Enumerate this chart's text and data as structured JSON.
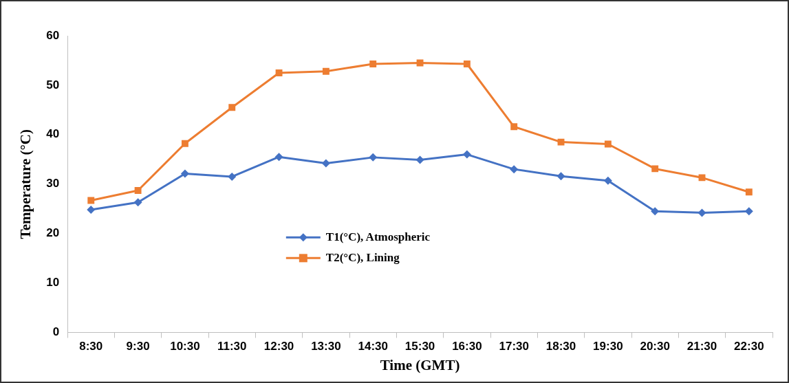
{
  "chart_data": {
    "type": "line",
    "xlabel": "Time (GMT)",
    "ylabel": "Temperature (°C)",
    "categories": [
      "8:30",
      "9:30",
      "10:30",
      "11:30",
      "12:30",
      "13:30",
      "14:30",
      "15:30",
      "16:30",
      "17:30",
      "18:30",
      "19:30",
      "20:30",
      "21:30",
      "22:30"
    ],
    "series": [
      {
        "name": "T1(°C), Atmospheric",
        "color": "#4472c4",
        "marker": "diamond",
        "values": [
          24.8,
          26.3,
          32.1,
          31.5,
          35.5,
          34.2,
          35.4,
          34.9,
          36.0,
          33.0,
          31.6,
          30.7,
          24.5,
          24.2,
          24.5
        ]
      },
      {
        "name": "T2(°C), Lining",
        "color": "#ed7d31",
        "marker": "square",
        "values": [
          26.7,
          28.7,
          38.2,
          45.5,
          52.5,
          52.8,
          54.3,
          54.5,
          54.3,
          41.6,
          38.5,
          38.1,
          33.1,
          31.3,
          28.4
        ]
      }
    ],
    "ylim": [
      0,
      60
    ],
    "yticks": [
      0,
      10,
      20,
      30,
      40,
      50,
      60
    ],
    "grid": false,
    "legend": "center",
    "line_style": "solid"
  }
}
